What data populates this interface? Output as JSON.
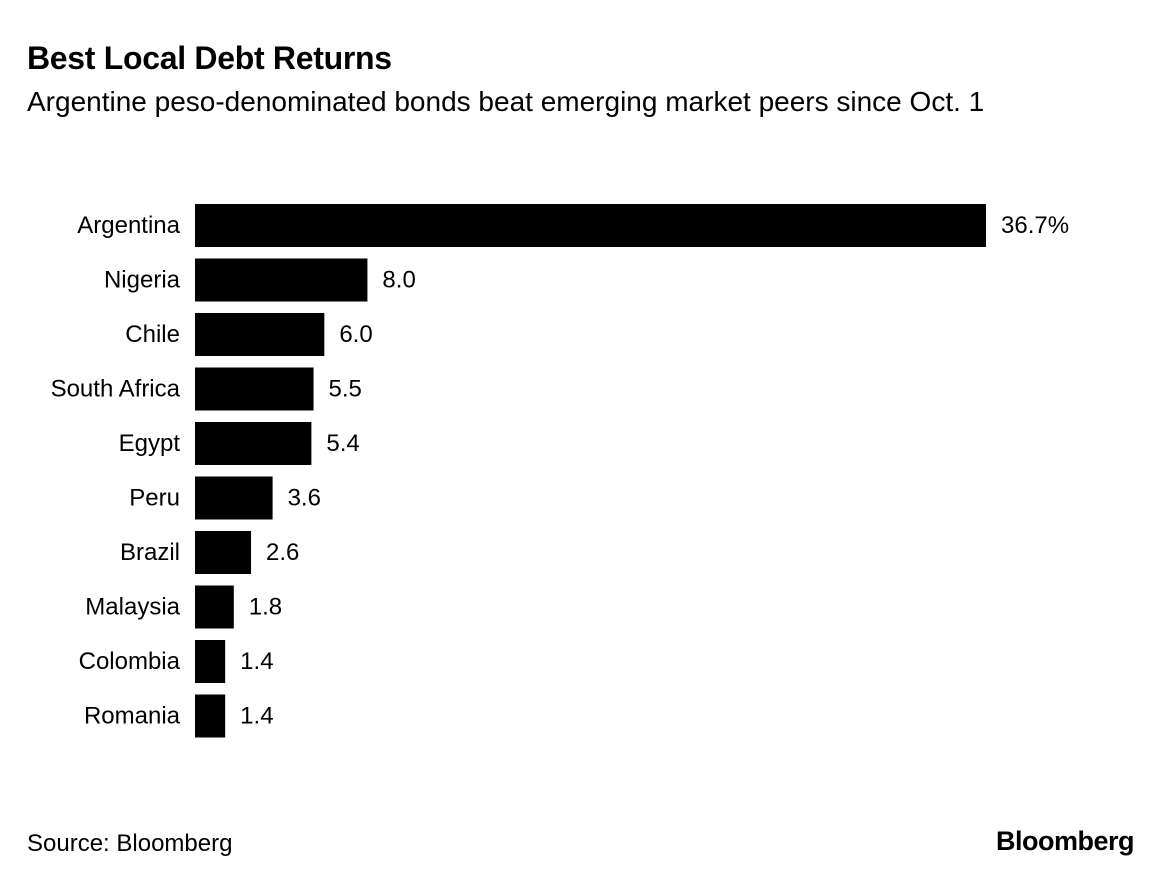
{
  "header": {
    "title": "Best Local Debt Returns",
    "subtitle": "Argentine peso-denominated bonds beat emerging market peers since Oct. 1"
  },
  "footer": {
    "source": "Source: Bloomberg",
    "brand": "Bloomberg"
  },
  "colors": {
    "bar": "#000000",
    "text": "#000000",
    "background": "#ffffff"
  },
  "chart_data": {
    "type": "bar",
    "orientation": "horizontal",
    "categories": [
      "Argentina",
      "Nigeria",
      "Chile",
      "South Africa",
      "Egypt",
      "Peru",
      "Brazil",
      "Malaysia",
      "Colombia",
      "Romania"
    ],
    "values": [
      36.7,
      8.0,
      6.0,
      5.5,
      5.4,
      3.6,
      2.6,
      1.8,
      1.4,
      1.4
    ],
    "value_labels": [
      "36.7%",
      "8.0",
      "6.0",
      "5.5",
      "5.4",
      "3.6",
      "2.6",
      "1.8",
      "1.4",
      "1.4"
    ],
    "title": "Best Local Debt Returns",
    "subtitle": "Argentine peso-denominated bonds beat emerging market peers since Oct. 1",
    "xlabel": "",
    "ylabel": "",
    "xlim": [
      0,
      36.7
    ],
    "grid": false,
    "legend": "none"
  }
}
